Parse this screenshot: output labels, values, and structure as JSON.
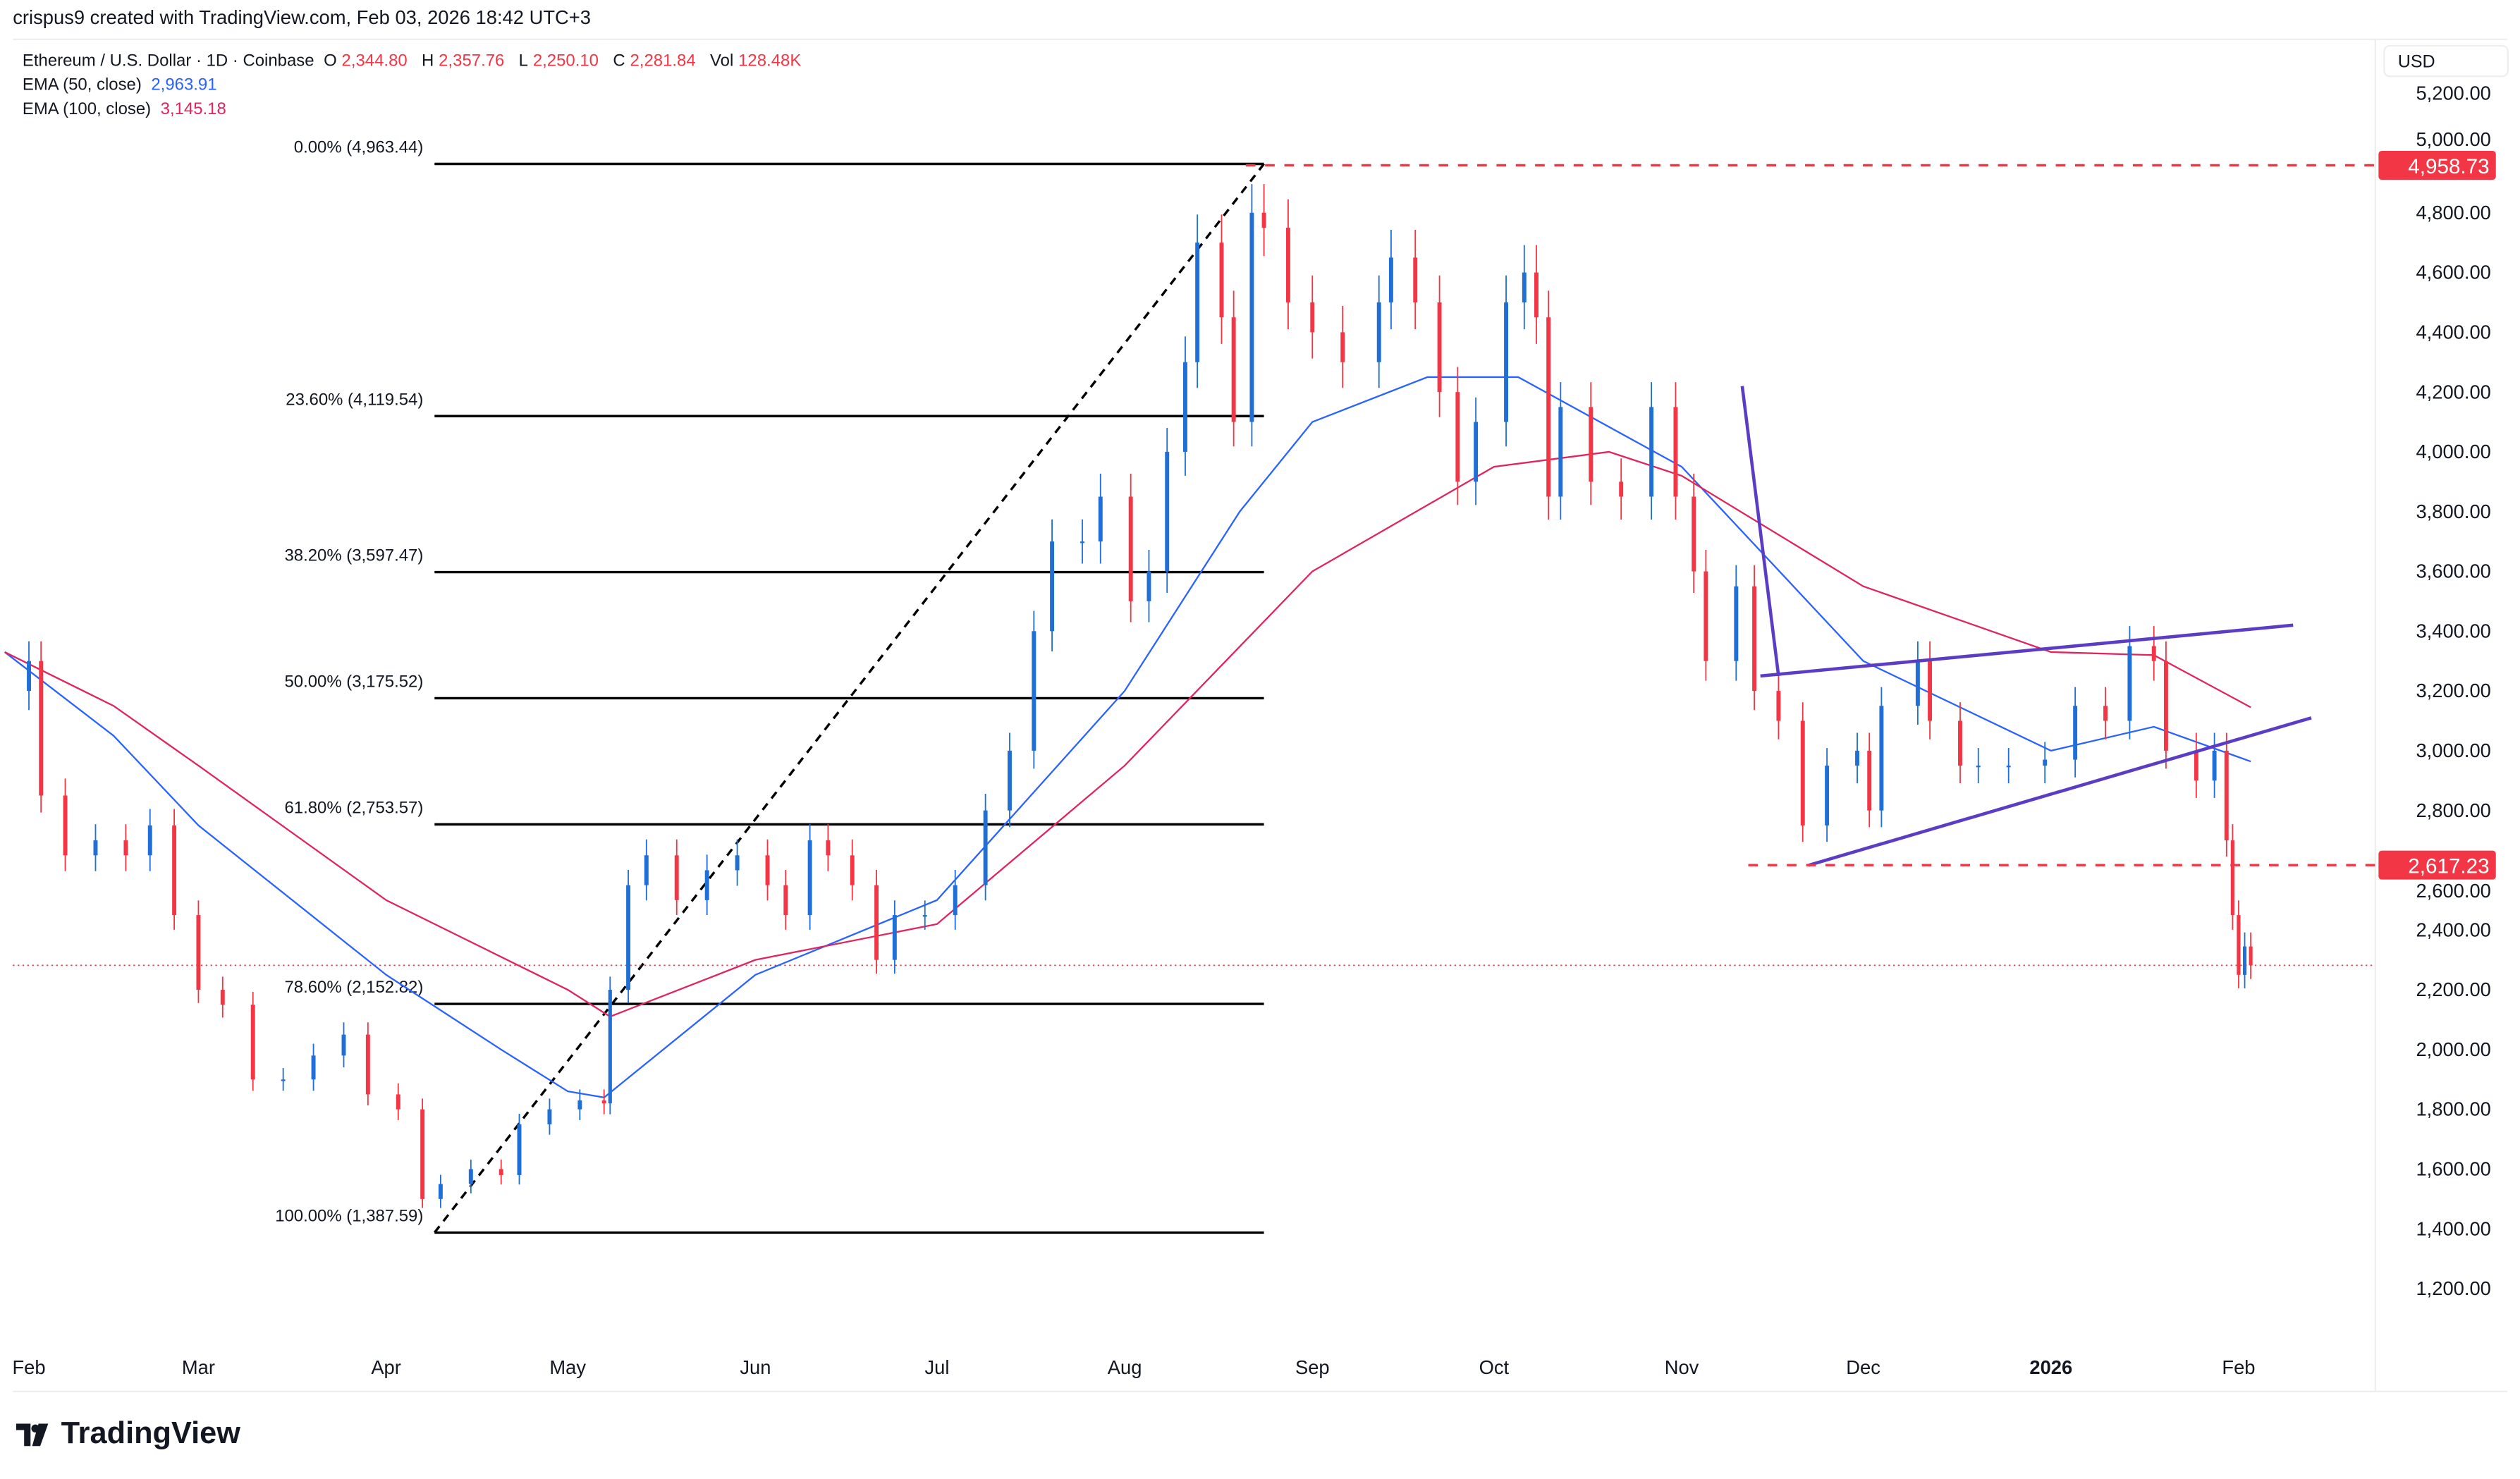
{
  "credit": "crispus9 created with TradingView.com, Feb 03, 2026 18:42 UTC+3",
  "legend": {
    "symbol": "Ethereum / U.S. Dollar · 1D · Coinbase",
    "o_label": "O",
    "o": "2,344.80",
    "h_label": "H",
    "h": "2,357.76",
    "l_label": "L",
    "l": "2,250.10",
    "c_label": "C",
    "c": "2,281.84",
    "vol_label": "Vol",
    "vol": "128.48K",
    "ema50_label": "EMA (50, close)",
    "ema50": "2,963.91",
    "ema100_label": "EMA (100, close)",
    "ema100": "3,145.18"
  },
  "currency": "USD",
  "logo_text": "TradingView",
  "colors": {
    "up": "#1f6fd6",
    "down": "#f23645",
    "ema50": "#2962ff",
    "ema100": "#e0245e",
    "pattern": "#5b3cc4",
    "fib": "#000000",
    "level": "#f23645"
  },
  "chart_data": {
    "type": "candlestick",
    "title": "Ethereum / U.S. Dollar · 1D · Coinbase",
    "ylim": [
      1000,
      5300
    ],
    "grid": false,
    "y_ticks": [
      "1,200.00",
      "1,400.00",
      "1,600.00",
      "1,800.00",
      "2,000.00",
      "2,200.00",
      "2,400.00",
      "2,600.00",
      "2,800.00",
      "3,000.00",
      "3,200.00",
      "3,400.00",
      "3,600.00",
      "3,800.00",
      "4,000.00",
      "4,200.00",
      "4,400.00",
      "4,600.00",
      "4,800.00",
      "5,000.00",
      "5,200.00"
    ],
    "x_ticks": [
      {
        "date": "2025-02-01",
        "label": "Feb"
      },
      {
        "date": "2025-03-01",
        "label": "Mar"
      },
      {
        "date": "2025-04-01",
        "label": "Apr"
      },
      {
        "date": "2025-05-01",
        "label": "May"
      },
      {
        "date": "2025-06-01",
        "label": "Jun"
      },
      {
        "date": "2025-07-01",
        "label": "Jul"
      },
      {
        "date": "2025-08-01",
        "label": "Aug"
      },
      {
        "date": "2025-09-01",
        "label": "Sep"
      },
      {
        "date": "2025-10-01",
        "label": "Oct"
      },
      {
        "date": "2025-11-01",
        "label": "Nov"
      },
      {
        "date": "2025-12-01",
        "label": "Dec"
      },
      {
        "date": "2026-01-01",
        "label": "2026",
        "bold": true
      },
      {
        "date": "2026-02-01",
        "label": "Feb"
      }
    ],
    "closes": [
      [
        "2025-01-28",
        3200
      ],
      [
        "2025-02-01",
        3300
      ],
      [
        "2025-02-03",
        2850
      ],
      [
        "2025-02-07",
        2650
      ],
      [
        "2025-02-12",
        2700
      ],
      [
        "2025-02-17",
        2650
      ],
      [
        "2025-02-21",
        2750
      ],
      [
        "2025-02-25",
        2450
      ],
      [
        "2025-03-01",
        2200
      ],
      [
        "2025-03-05",
        2150
      ],
      [
        "2025-03-10",
        1900
      ],
      [
        "2025-03-15",
        1900
      ],
      [
        "2025-03-20",
        1980
      ],
      [
        "2025-03-25",
        2050
      ],
      [
        "2025-03-29",
        1850
      ],
      [
        "2025-04-03",
        1800
      ],
      [
        "2025-04-07",
        1500
      ],
      [
        "2025-04-10",
        1550
      ],
      [
        "2025-04-15",
        1600
      ],
      [
        "2025-04-20",
        1580
      ],
      [
        "2025-04-23",
        1750
      ],
      [
        "2025-04-28",
        1800
      ],
      [
        "2025-05-03",
        1830
      ],
      [
        "2025-05-07",
        1820
      ],
      [
        "2025-05-08",
        2200
      ],
      [
        "2025-05-11",
        2550
      ],
      [
        "2025-05-14",
        2650
      ],
      [
        "2025-05-19",
        2500
      ],
      [
        "2025-05-24",
        2600
      ],
      [
        "2025-05-29",
        2650
      ],
      [
        "2025-06-03",
        2550
      ],
      [
        "2025-06-06",
        2450
      ],
      [
        "2025-06-10",
        2700
      ],
      [
        "2025-06-13",
        2650
      ],
      [
        "2025-06-17",
        2550
      ],
      [
        "2025-06-21",
        2300
      ],
      [
        "2025-06-24",
        2450
      ],
      [
        "2025-06-29",
        2450
      ],
      [
        "2025-07-04",
        2550
      ],
      [
        "2025-07-09",
        2800
      ],
      [
        "2025-07-13",
        3000
      ],
      [
        "2025-07-17",
        3400
      ],
      [
        "2025-07-20",
        3700
      ],
      [
        "2025-07-25",
        3700
      ],
      [
        "2025-07-28",
        3850
      ],
      [
        "2025-08-02",
        3500
      ],
      [
        "2025-08-05",
        3600
      ],
      [
        "2025-08-08",
        4000
      ],
      [
        "2025-08-11",
        4300
      ],
      [
        "2025-08-13",
        4700
      ],
      [
        "2025-08-17",
        4450
      ],
      [
        "2025-08-19",
        4100
      ],
      [
        "2025-08-22",
        4800
      ],
      [
        "2025-08-24",
        4750
      ],
      [
        "2025-08-28",
        4500
      ],
      [
        "2025-09-01",
        4400
      ],
      [
        "2025-09-06",
        4300
      ],
      [
        "2025-09-12",
        4500
      ],
      [
        "2025-09-14",
        4650
      ],
      [
        "2025-09-18",
        4500
      ],
      [
        "2025-09-22",
        4200
      ],
      [
        "2025-09-25",
        3900
      ],
      [
        "2025-09-28",
        4100
      ],
      [
        "2025-10-03",
        4500
      ],
      [
        "2025-10-06",
        4600
      ],
      [
        "2025-10-08",
        4450
      ],
      [
        "2025-10-10",
        3850
      ],
      [
        "2025-10-12",
        4150
      ],
      [
        "2025-10-17",
        3900
      ],
      [
        "2025-10-22",
        3850
      ],
      [
        "2025-10-27",
        4150
      ],
      [
        "2025-10-31",
        3850
      ],
      [
        "2025-11-03",
        3600
      ],
      [
        "2025-11-05",
        3300
      ],
      [
        "2025-11-10",
        3550
      ],
      [
        "2025-11-13",
        3200
      ],
      [
        "2025-11-17",
        3100
      ],
      [
        "2025-11-21",
        2750
      ],
      [
        "2025-11-25",
        2950
      ],
      [
        "2025-11-30",
        3000
      ],
      [
        "2025-12-02",
        2800
      ],
      [
        "2025-12-04",
        3150
      ],
      [
        "2025-12-10",
        3300
      ],
      [
        "2025-12-12",
        3100
      ],
      [
        "2025-12-17",
        2950
      ],
      [
        "2025-12-20",
        2950
      ],
      [
        "2025-12-25",
        2950
      ],
      [
        "2025-12-31",
        2970
      ],
      [
        "2026-01-05",
        3150
      ],
      [
        "2026-01-10",
        3100
      ],
      [
        "2026-01-14",
        3350
      ],
      [
        "2026-01-18",
        3300
      ],
      [
        "2026-01-20",
        3000
      ],
      [
        "2026-01-25",
        2900
      ],
      [
        "2026-01-28",
        3000
      ],
      [
        "2026-01-30",
        2700
      ],
      [
        "2026-01-31",
        2450
      ],
      [
        "2026-02-01",
        2250
      ],
      [
        "2026-02-02",
        2345
      ],
      [
        "2026-02-03",
        2281.84
      ]
    ],
    "series": [
      {
        "name": "EMA (50, close)",
        "points": [
          [
            "2025-01-28",
            3330
          ],
          [
            "2025-02-15",
            3050
          ],
          [
            "2025-03-01",
            2750
          ],
          [
            "2025-04-01",
            2250
          ],
          [
            "2025-04-20",
            2000
          ],
          [
            "2025-05-01",
            1860
          ],
          [
            "2025-05-07",
            1840
          ],
          [
            "2025-06-01",
            2250
          ],
          [
            "2025-07-01",
            2500
          ],
          [
            "2025-08-01",
            3200
          ],
          [
            "2025-08-20",
            3800
          ],
          [
            "2025-09-01",
            4100
          ],
          [
            "2025-09-20",
            4250
          ],
          [
            "2025-10-05",
            4250
          ],
          [
            "2025-11-01",
            3950
          ],
          [
            "2025-12-01",
            3300
          ],
          [
            "2026-01-01",
            3000
          ],
          [
            "2026-01-18",
            3080
          ],
          [
            "2026-02-03",
            2964
          ]
        ]
      },
      {
        "name": "EMA (100, close)",
        "points": [
          [
            "2025-01-28",
            3330
          ],
          [
            "2025-02-15",
            3150
          ],
          [
            "2025-03-01",
            2950
          ],
          [
            "2025-04-01",
            2500
          ],
          [
            "2025-05-01",
            2200
          ],
          [
            "2025-05-08",
            2110
          ],
          [
            "2025-06-01",
            2300
          ],
          [
            "2025-07-01",
            2420
          ],
          [
            "2025-08-01",
            2950
          ],
          [
            "2025-09-01",
            3600
          ],
          [
            "2025-10-01",
            3950
          ],
          [
            "2025-10-20",
            4000
          ],
          [
            "2025-11-01",
            3920
          ],
          [
            "2025-12-01",
            3550
          ],
          [
            "2026-01-01",
            3330
          ],
          [
            "2026-01-18",
            3320
          ],
          [
            "2026-02-03",
            3145
          ]
        ]
      }
    ],
    "fibonacci": [
      {
        "label": "0.00% (4,963.44)",
        "price": 4963.44
      },
      {
        "label": "23.60% (4,119.54)",
        "price": 4119.54
      },
      {
        "label": "38.20% (3,597.47)",
        "price": 3597.47
      },
      {
        "label": "50.00% (3,175.52)",
        "price": 3175.52
      },
      {
        "label": "61.80% (2,753.57)",
        "price": 2753.57
      },
      {
        "label": "78.60% (2,152.82)",
        "price": 2152.82
      },
      {
        "label": "100.00% (1,387.59)",
        "price": 1387.59
      }
    ],
    "fib_range": {
      "from": [
        "2025-04-09",
        1387.59
      ],
      "to": [
        "2025-08-24",
        4963.44
      ]
    },
    "levels": [
      {
        "label": "4,958.73",
        "price": 4958.73,
        "from": "2025-08-21"
      },
      {
        "label": "2,617.23",
        "price": 2617.23,
        "from": "2025-11-12"
      }
    ],
    "last_price": 2281.84,
    "pattern_lines": [
      [
        [
          "2025-11-14",
          3250
        ],
        [
          "2026-02-10",
          3420
        ]
      ],
      [
        [
          "2025-11-22",
          2617
        ],
        [
          "2026-02-13",
          3110
        ]
      ],
      [
        [
          "2025-11-11",
          4220
        ],
        [
          "2025-11-17",
          3250
        ]
      ]
    ]
  }
}
